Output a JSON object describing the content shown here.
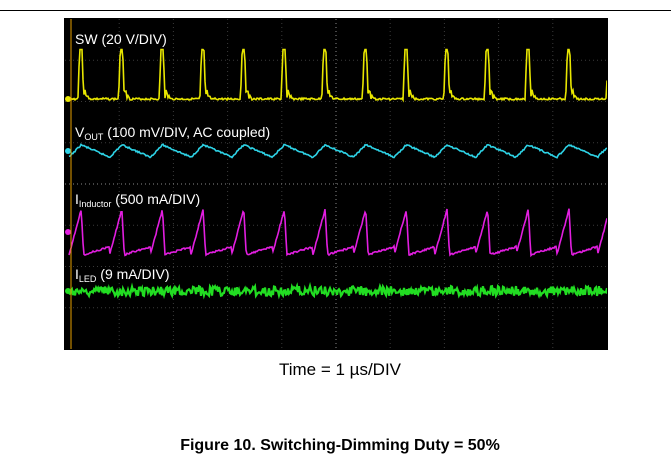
{
  "figure": {
    "caption": "Figure 10. Switching-Dimming Duty = 50%",
    "time_label": "Time = 1 µs/DIV"
  },
  "chart_data": {
    "type": "line",
    "title": "",
    "xlabel": "Time = 1 µs/DIV",
    "ylabel": "",
    "x_unit": "µs",
    "x_divisions": 10,
    "y_divisions": 8,
    "grid": true,
    "channels": [
      {
        "id": "sw",
        "label_main": "SW",
        "label_sub": "",
        "label_rest": " (20 V/DIV)",
        "scale": "20 V/DIV",
        "color": "#e8e600",
        "waveform": "pulse",
        "period_us": 0.75,
        "pulse_high_div": 1.2
      },
      {
        "id": "vout",
        "label_main": "V",
        "label_sub": "OUT",
        "label_rest": " (100 mV/DIV, AC coupled)",
        "scale": "100 mV/DIV",
        "color": "#2ed3e6",
        "waveform": "ripple",
        "period_us": 0.75,
        "ripple_div": 0.15
      },
      {
        "id": "iind",
        "label_main": "I",
        "label_sub": "Inductor",
        "label_rest": " (500 mA/DIV)",
        "scale": "500 mA/DIV",
        "color": "#e21ee0",
        "waveform": "sawtooth",
        "period_us": 0.75,
        "ripple_div": 0.55
      },
      {
        "id": "iled",
        "label_main": "I",
        "label_sub": "LED",
        "label_rest": " (9 mA/DIV)",
        "scale": "9 mA/DIV",
        "color": "#22dd22",
        "waveform": "flat",
        "period_us": 0.75,
        "ripple_div": 0.02
      }
    ]
  }
}
